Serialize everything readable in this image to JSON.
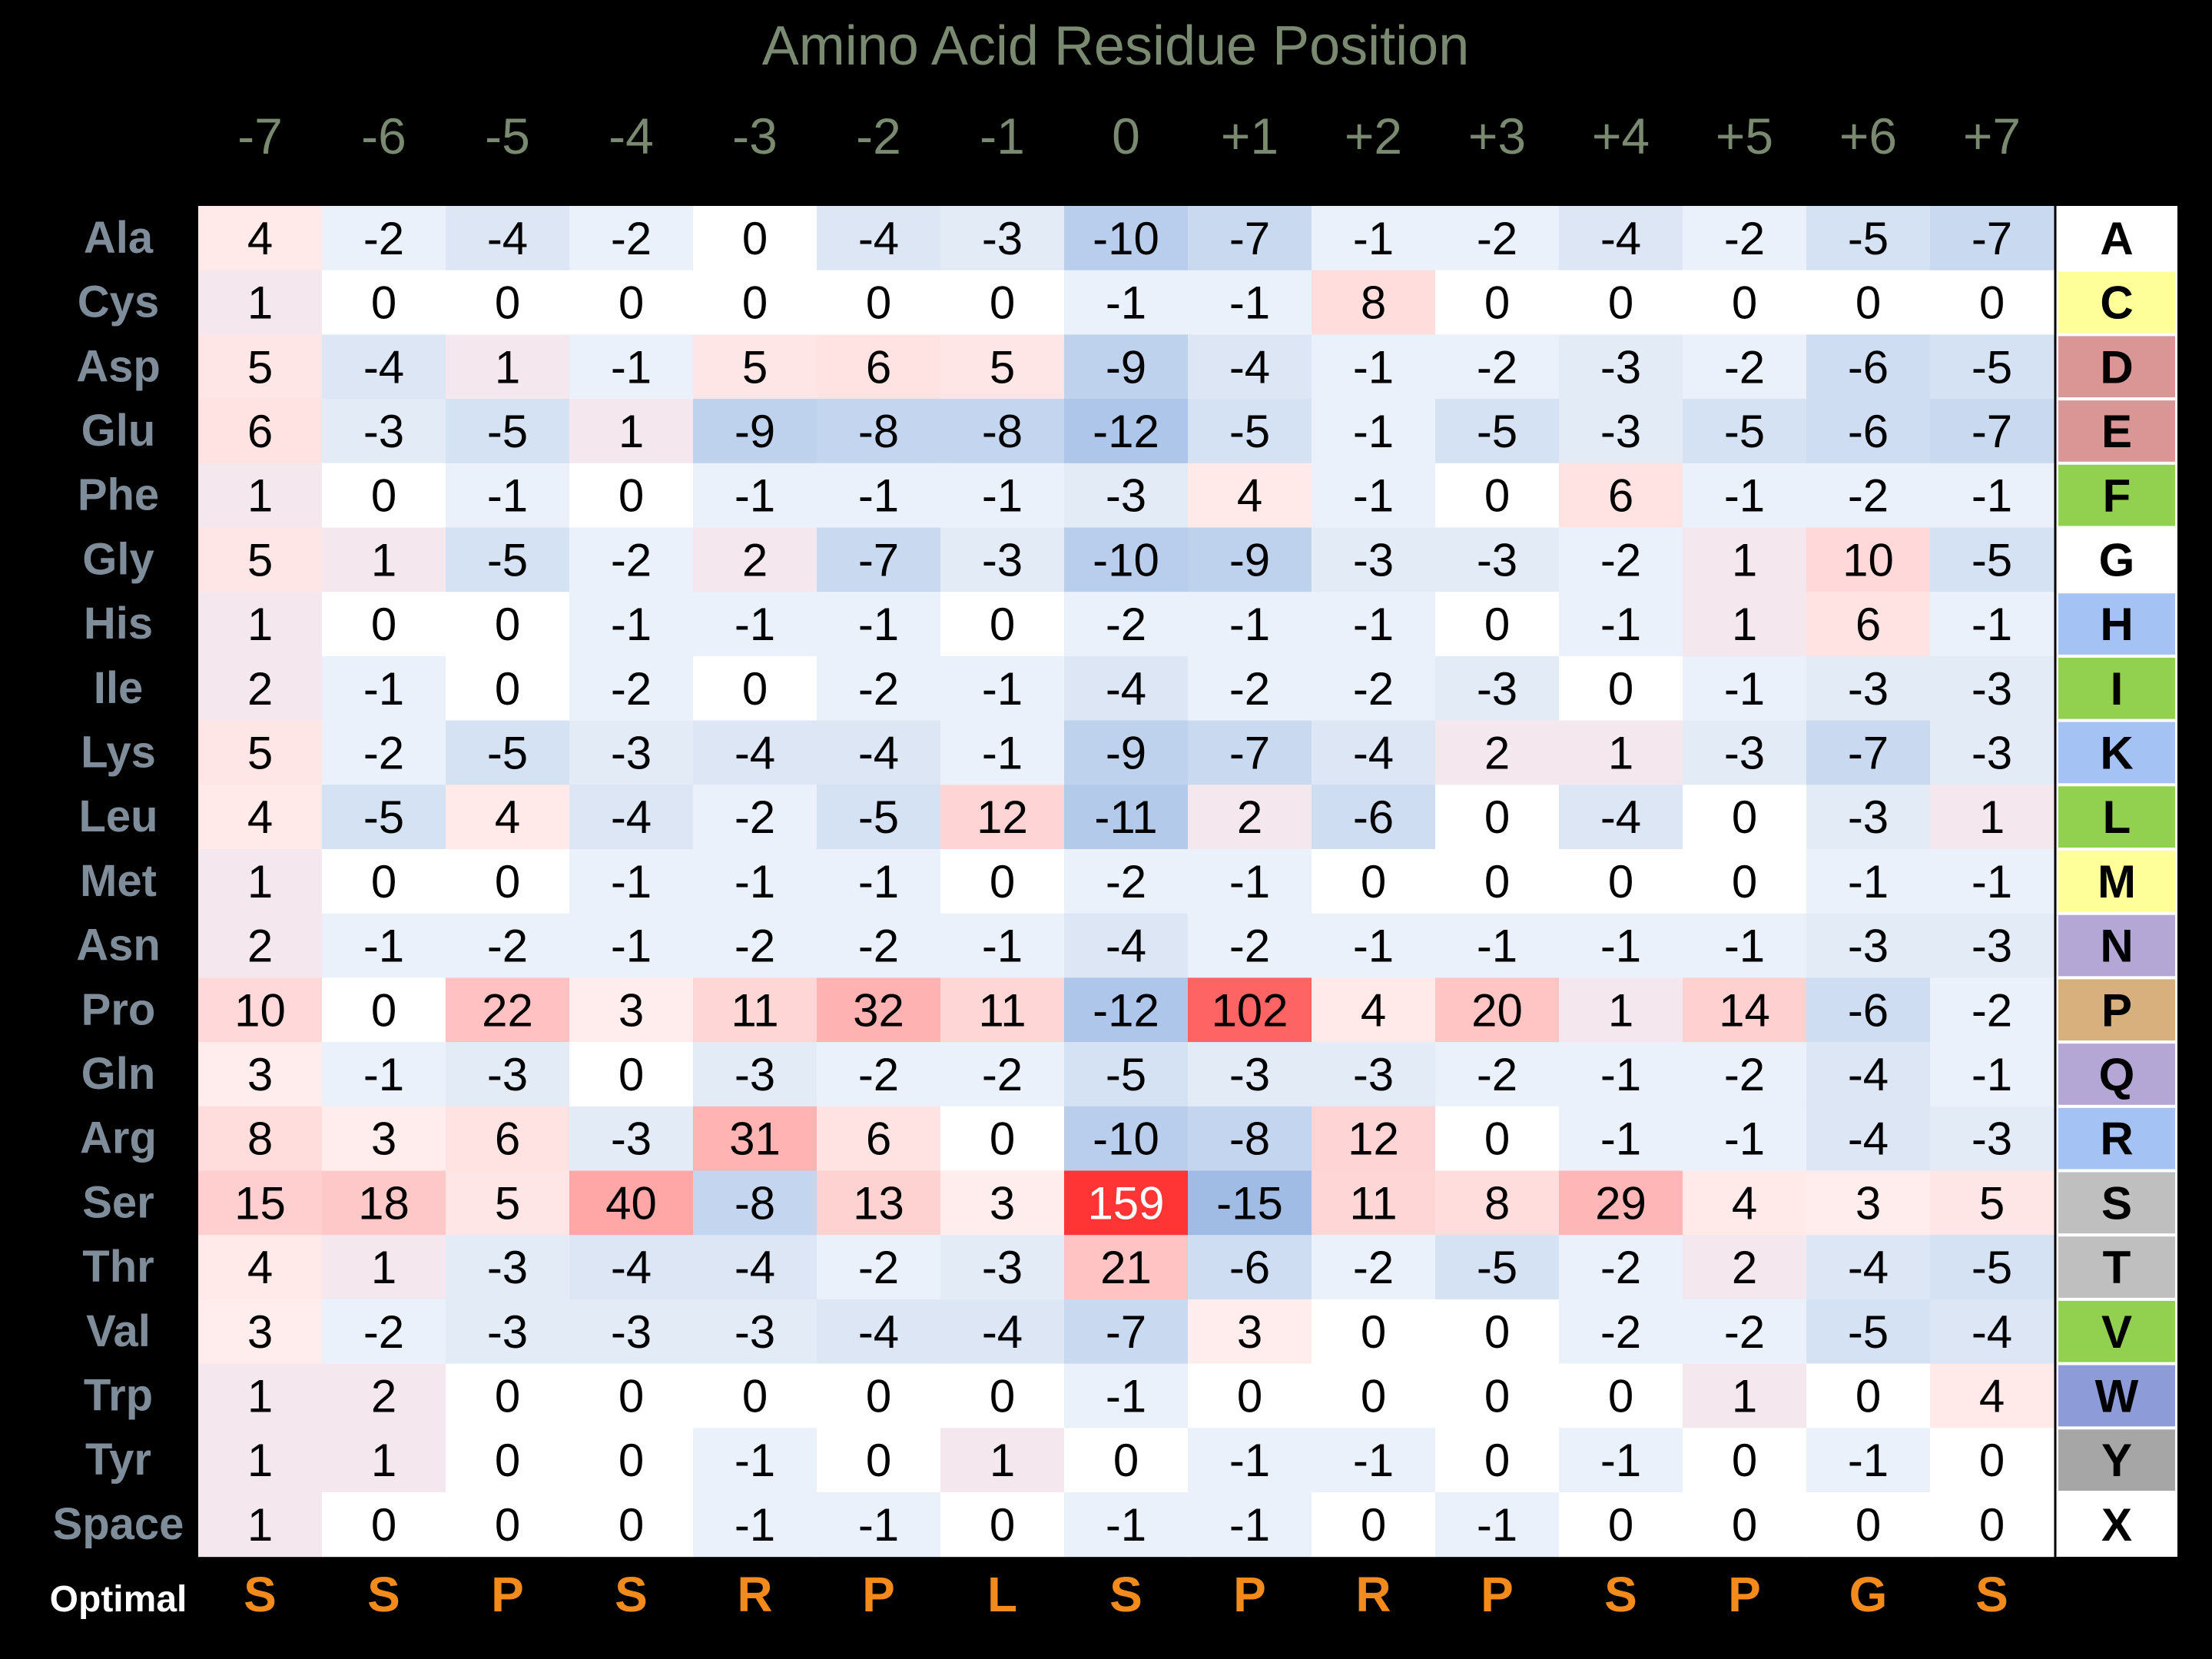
{
  "chart_data": {
    "type": "heatmap",
    "title": "Amino Acid Residue Position",
    "positions": [
      "-7",
      "-6",
      "-5",
      "-4",
      "-3",
      "-2",
      "-1",
      "0",
      "+1",
      "+2",
      "+3",
      "+4",
      "+5",
      "+6",
      "+7"
    ],
    "residues": [
      "Ala",
      "Cys",
      "Asp",
      "Glu",
      "Phe",
      "Gly",
      "His",
      "Ile",
      "Lys",
      "Leu",
      "Met",
      "Asn",
      "Pro",
      "Gln",
      "Arg",
      "Ser",
      "Thr",
      "Val",
      "Trp",
      "Tyr",
      "Space"
    ],
    "codes": [
      "A",
      "C",
      "D",
      "E",
      "F",
      "G",
      "H",
      "I",
      "K",
      "L",
      "M",
      "N",
      "P",
      "Q",
      "R",
      "S",
      "T",
      "V",
      "W",
      "Y",
      "X"
    ],
    "code_colors": [
      "#ffffff",
      "#ffff99",
      "#d99694",
      "#d99694",
      "#92d050",
      "#ffffff",
      "#a4c2f4",
      "#92d050",
      "#a4c2f4",
      "#92d050",
      "#ffff99",
      "#b4a7d6",
      "#d8b07e",
      "#b4a7d6",
      "#a4c2f4",
      "#bfbfbf",
      "#bfbfbf",
      "#92d050",
      "#8e9bd9",
      "#a6a6a6",
      "#ffffff"
    ],
    "values": [
      [
        4,
        -2,
        -4,
        -2,
        0,
        -4,
        -3,
        -10,
        -7,
        -1,
        -2,
        -4,
        -2,
        -5,
        -7
      ],
      [
        1,
        0,
        0,
        0,
        0,
        0,
        0,
        -1,
        -1,
        8,
        0,
        0,
        0,
        0,
        0
      ],
      [
        5,
        -4,
        1,
        -1,
        5,
        6,
        5,
        -9,
        -4,
        -1,
        -2,
        -3,
        -2,
        -6,
        -5
      ],
      [
        6,
        -3,
        -5,
        1,
        -9,
        -8,
        -8,
        -12,
        -5,
        -1,
        -5,
        -3,
        -5,
        -6,
        -7
      ],
      [
        1,
        0,
        -1,
        0,
        -1,
        -1,
        -1,
        -3,
        4,
        -1,
        0,
        6,
        -1,
        -2,
        -1
      ],
      [
        5,
        1,
        -5,
        -2,
        2,
        -7,
        -3,
        -10,
        -9,
        -3,
        -3,
        -2,
        1,
        10,
        -5
      ],
      [
        1,
        0,
        0,
        -1,
        -1,
        -1,
        0,
        -2,
        -1,
        -1,
        0,
        -1,
        1,
        6,
        -1
      ],
      [
        2,
        -1,
        0,
        -2,
        0,
        -2,
        -1,
        -4,
        -2,
        -2,
        -3,
        0,
        -1,
        -3,
        -3
      ],
      [
        5,
        -2,
        -5,
        -3,
        -4,
        -4,
        -1,
        -9,
        -7,
        -4,
        2,
        1,
        -3,
        -7,
        -3
      ],
      [
        4,
        -5,
        4,
        -4,
        -2,
        -5,
        12,
        -11,
        2,
        -6,
        0,
        -4,
        0,
        -3,
        1
      ],
      [
        1,
        0,
        0,
        -1,
        -1,
        -1,
        0,
        -2,
        -1,
        0,
        0,
        0,
        0,
        -1,
        -1
      ],
      [
        2,
        -1,
        -2,
        -1,
        -2,
        -2,
        -1,
        -4,
        -2,
        -1,
        -1,
        -1,
        -1,
        -3,
        -3
      ],
      [
        10,
        0,
        22,
        3,
        11,
        32,
        11,
        -12,
        102,
        4,
        20,
        1,
        14,
        -6,
        -2
      ],
      [
        3,
        -1,
        -3,
        0,
        -3,
        -2,
        -2,
        -5,
        -3,
        -3,
        -2,
        -1,
        -2,
        -4,
        -1
      ],
      [
        8,
        3,
        6,
        -3,
        31,
        6,
        0,
        -10,
        -8,
        12,
        0,
        -1,
        -1,
        -4,
        -3
      ],
      [
        15,
        18,
        5,
        40,
        -8,
        13,
        3,
        159,
        -15,
        11,
        8,
        29,
        4,
        3,
        5
      ],
      [
        4,
        1,
        -3,
        -4,
        -4,
        -2,
        -3,
        21,
        -6,
        -2,
        -5,
        -2,
        2,
        -4,
        -5
      ],
      [
        3,
        -2,
        -3,
        -3,
        -3,
        -4,
        -4,
        -7,
        3,
        0,
        0,
        -2,
        -2,
        -5,
        -4
      ],
      [
        1,
        2,
        0,
        0,
        0,
        0,
        0,
        -1,
        0,
        0,
        0,
        0,
        1,
        0,
        4
      ],
      [
        1,
        1,
        0,
        0,
        -1,
        0,
        1,
        0,
        -1,
        -1,
        0,
        -1,
        0,
        -1,
        0
      ],
      [
        1,
        0,
        0,
        0,
        -1,
        -1,
        0,
        -1,
        -1,
        0,
        -1,
        0,
        0,
        0,
        0
      ]
    ],
    "optimal_label": "Optimal",
    "optimal": [
      "S",
      "S",
      "P",
      "S",
      "R",
      "P",
      "L",
      "S",
      "P",
      "R",
      "P",
      "S",
      "P",
      "G",
      "S"
    ],
    "colors": {
      "background": "#000000",
      "title": "#7a8a70",
      "position_labels": "#7a8a70",
      "row_labels": "#7f8c99",
      "optimal_label": "#ffffff",
      "optimal": "#f28a1c",
      "positive": "#ff2a2a",
      "negative": "#8fb0e0",
      "cell_text": "#000000"
    }
  }
}
